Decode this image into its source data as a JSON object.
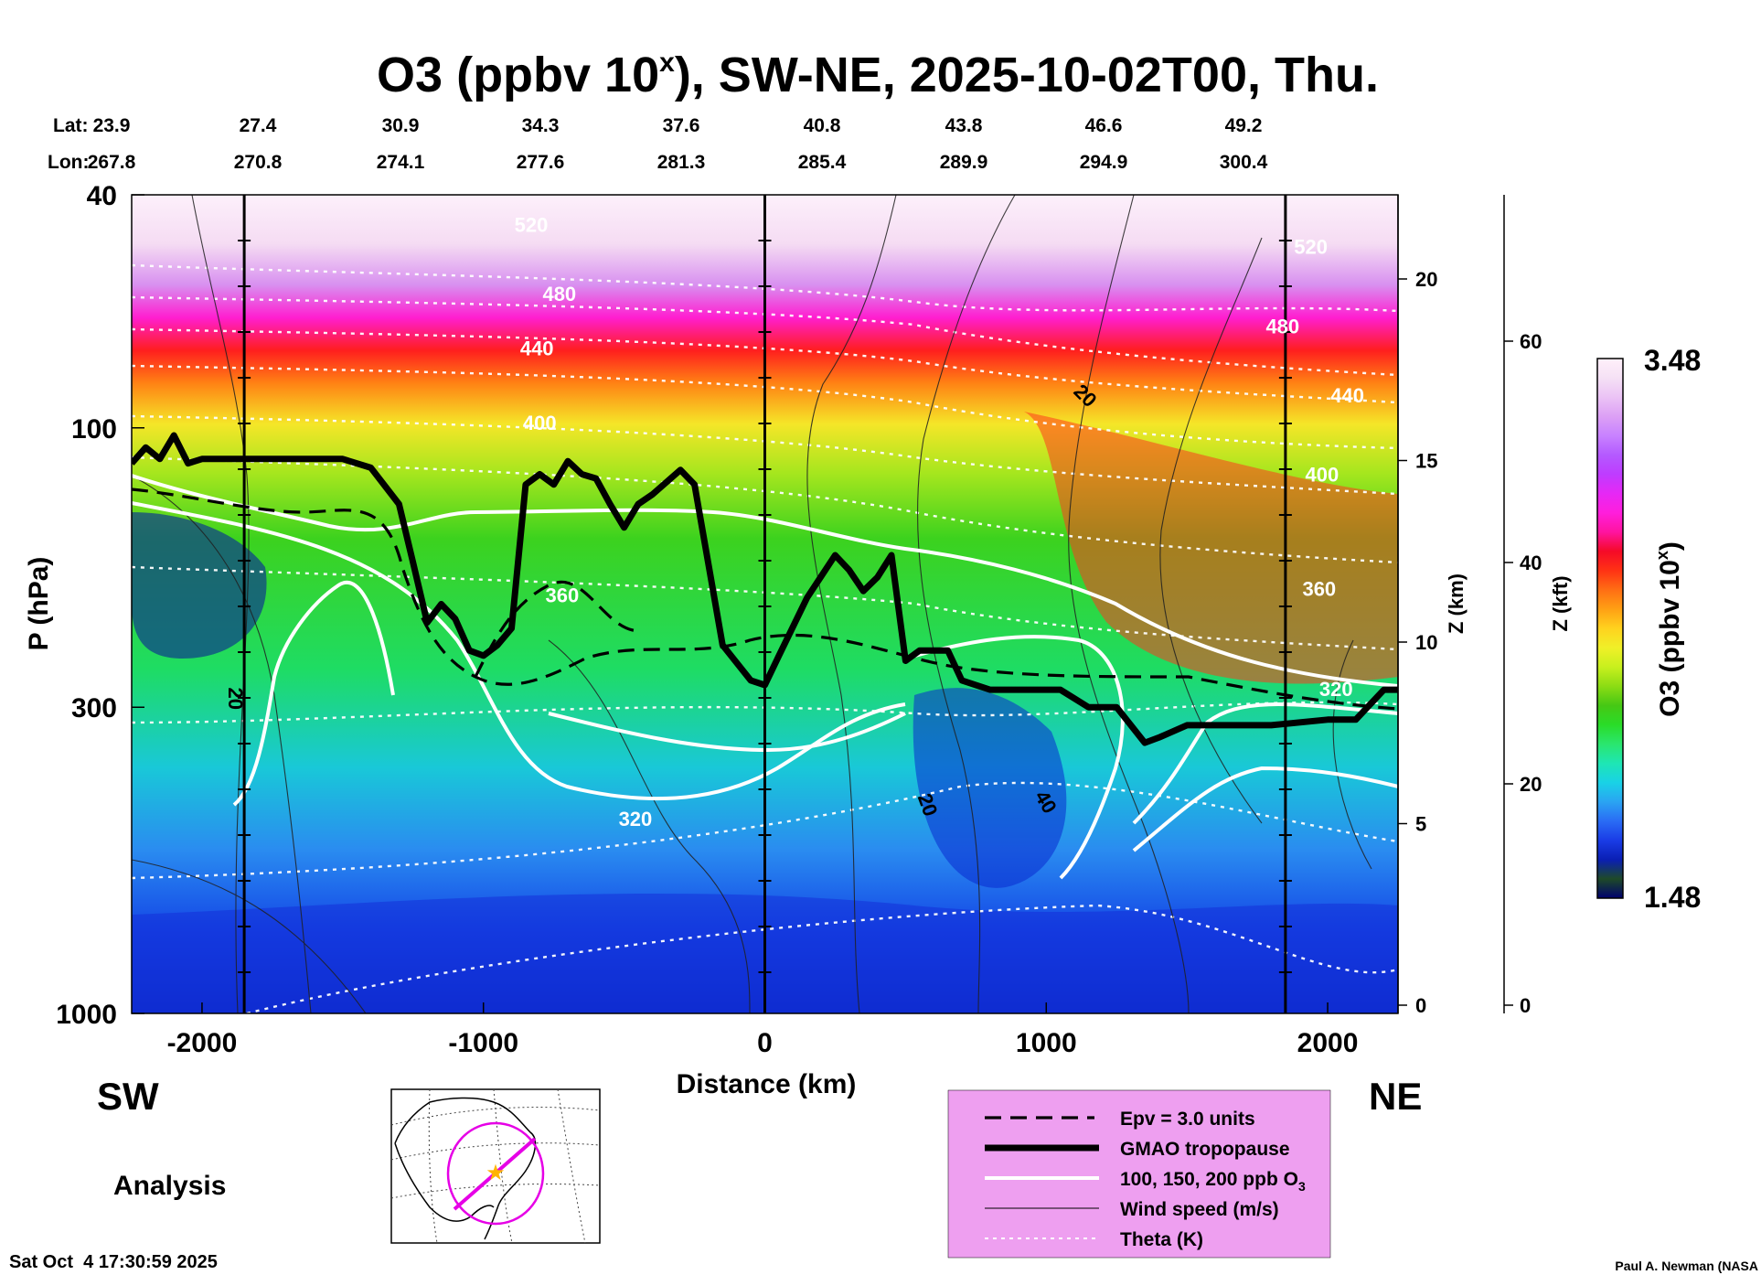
{
  "chart_data": {
    "type": "heatmap",
    "title": "O3 (ppbv 10",
    "title_superscript": "x",
    "title_suffix": "), SW-NE, 2025-10-02T00, Thu.",
    "lat_label": "Lat:",
    "lon_label": "Lon:",
    "lat": [
      "23.9",
      "27.4",
      "30.9",
      "34.3",
      "37.6",
      "40.8",
      "43.8",
      "46.6",
      "49.2"
    ],
    "lon": [
      "267.8",
      "270.8",
      "274.1",
      "277.6",
      "281.3",
      "285.4",
      "289.9",
      "294.9",
      "300.4"
    ],
    "xlabel": "Distance (km)",
    "xlim": [
      -2250,
      2250
    ],
    "xticks": [
      -2000,
      -1000,
      0,
      1000,
      2000
    ],
    "xtick_labels": [
      "-2000",
      "-1000",
      "0",
      "1000",
      "2000"
    ],
    "ylabel": "P (hPa)",
    "ylim": [
      1000,
      40
    ],
    "yticks": [
      40,
      100,
      300,
      1000
    ],
    "ytick_labels": [
      "40",
      "100",
      "300",
      "1000"
    ],
    "z_km_label": "Z (km)",
    "z_km_ticks": [
      0,
      5,
      10,
      15,
      20
    ],
    "z_km_labels": [
      "0",
      "5",
      "10",
      "15",
      "20"
    ],
    "z_kft_label": "Z (kft)",
    "z_kft_ticks": [
      0,
      20,
      40,
      60
    ],
    "z_kft_labels": [
      "0",
      "20",
      "40",
      "60"
    ],
    "colorbar": {
      "label": "O3 (ppbv 10",
      "label_sup": "x",
      "label_suffix": ")",
      "min": 1.48,
      "max": 3.48,
      "min_label": "1.48",
      "max_label": "3.48",
      "colors": [
        "#00006e",
        "#1e4a28",
        "#0a1fb4",
        "#1a3ce6",
        "#2a6cf5",
        "#2aa4f2",
        "#19d2e6",
        "#1ee6b4",
        "#2ae66e",
        "#2adc28",
        "#46c814",
        "#8cdc14",
        "#c8f01e",
        "#f0f028",
        "#ffd21e",
        "#ffa014",
        "#ff6e14",
        "#ff3214",
        "#f50a28",
        "#ff14a0",
        "#ff1edc",
        "#e628f5",
        "#be3cff",
        "#b45aff",
        "#c882ff",
        "#dca0f5",
        "#ebc3f5",
        "#f5e1f5",
        "#fff0fa"
      ]
    },
    "vertical_lines_km": [
      -1850,
      0,
      1850
    ],
    "theta_labels": [
      {
        "text": "520",
        "x": -830,
        "p": 45
      },
      {
        "text": "480",
        "x": -730,
        "p": 59
      },
      {
        "text": "440",
        "x": -810,
        "p": 73
      },
      {
        "text": "400",
        "x": -800,
        "p": 98
      },
      {
        "text": "360",
        "x": -720,
        "p": 193
      },
      {
        "text": "320",
        "x": -460,
        "p": 465
      },
      {
        "text": "520",
        "x": 1940,
        "p": 49
      },
      {
        "text": "480",
        "x": 1840,
        "p": 67
      },
      {
        "text": "440",
        "x": 2070,
        "p": 88
      },
      {
        "text": "400",
        "x": 1980,
        "p": 120
      },
      {
        "text": "360",
        "x": 1970,
        "p": 188
      },
      {
        "text": "320",
        "x": 2030,
        "p": 279
      }
    ],
    "wind_labels": [
      {
        "text": "20",
        "x": 1140,
        "p": 88,
        "rot": 45
      },
      {
        "text": "20",
        "x": -1880,
        "p": 290,
        "rot": 90
      },
      {
        "text": "20",
        "x": 580,
        "p": 440,
        "rot": 70
      },
      {
        "text": "40",
        "x": 1000,
        "p": 435,
        "rot": 60
      }
    ],
    "legend": [
      {
        "label": "Epv = 3.0 units"
      },
      {
        "label": "GMAO tropopause"
      },
      {
        "label": "100, 150, 200 ppb O",
        "sub": "3"
      },
      {
        "label": "Wind speed (m/s)"
      },
      {
        "label": "Theta (K)"
      }
    ],
    "tropopause": [
      [
        -2250,
        115
      ],
      [
        -2200,
        108
      ],
      [
        -2150,
        113
      ],
      [
        -2100,
        103
      ],
      [
        -2050,
        115
      ],
      [
        -2000,
        113
      ],
      [
        -1800,
        113
      ],
      [
        -1500,
        113
      ],
      [
        -1400,
        117
      ],
      [
        -1300,
        135
      ],
      [
        -1250,
        170
      ],
      [
        -1200,
        215
      ],
      [
        -1150,
        200
      ],
      [
        -1100,
        212
      ],
      [
        -1050,
        240
      ],
      [
        -1000,
        245
      ],
      [
        -950,
        235
      ],
      [
        -900,
        220
      ],
      [
        -850,
        125
      ],
      [
        -800,
        120
      ],
      [
        -750,
        125
      ],
      [
        -700,
        114
      ],
      [
        -650,
        120
      ],
      [
        -600,
        122
      ],
      [
        -550,
        135
      ],
      [
        -500,
        148
      ],
      [
        -450,
        135
      ],
      [
        -400,
        130
      ],
      [
        -300,
        118
      ],
      [
        -250,
        125
      ],
      [
        -150,
        235
      ],
      [
        -50,
        270
      ],
      [
        0,
        275
      ],
      [
        50,
        245
      ],
      [
        150,
        195
      ],
      [
        250,
        165
      ],
      [
        300,
        175
      ],
      [
        350,
        190
      ],
      [
        400,
        180
      ],
      [
        450,
        165
      ],
      [
        500,
        250
      ],
      [
        550,
        240
      ],
      [
        650,
        240
      ],
      [
        700,
        270
      ],
      [
        800,
        280
      ],
      [
        900,
        280
      ],
      [
        1050,
        280
      ],
      [
        1150,
        300
      ],
      [
        1250,
        300
      ],
      [
        1350,
        345
      ],
      [
        1400,
        338
      ],
      [
        1500,
        322
      ],
      [
        1800,
        322
      ],
      [
        2000,
        315
      ],
      [
        2100,
        315
      ],
      [
        2200,
        280
      ],
      [
        2250,
        280
      ]
    ],
    "annotations": {
      "left_dir": "SW",
      "right_dir": "NE",
      "analysis": "Analysis",
      "timestamp": "Sat Oct  4 17:30:59 2025",
      "credit": "Paul A. Newman (NASA"
    }
  }
}
